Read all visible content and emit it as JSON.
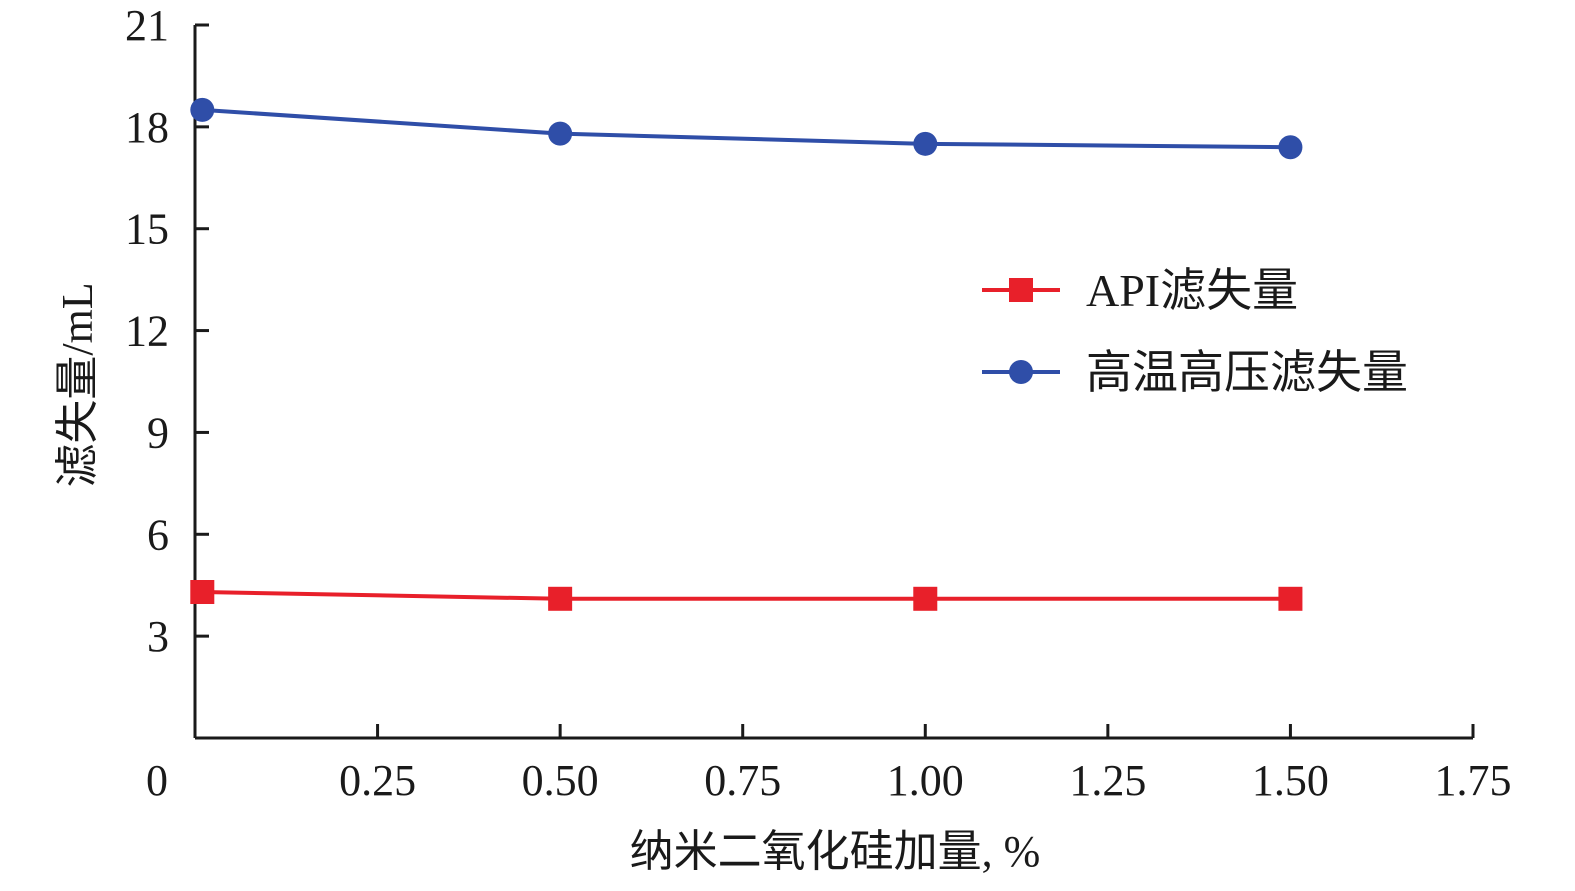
{
  "chart_data": {
    "type": "line",
    "title": "",
    "xlabel": "纳米二氧化硅加量, %",
    "ylabel": "滤失量/mL",
    "xlim": [
      0,
      1.75
    ],
    "ylim": [
      0,
      21
    ],
    "x_ticks": [
      "0",
      "0.25",
      "0.50",
      "0.75",
      "1.00",
      "1.25",
      "1.50",
      "1.75"
    ],
    "x_tick_values": [
      0,
      0.25,
      0.5,
      0.75,
      1.0,
      1.25,
      1.5,
      1.75
    ],
    "y_ticks": [
      "3",
      "6",
      "9",
      "12",
      "15",
      "18",
      "21"
    ],
    "y_tick_values": [
      3,
      6,
      9,
      12,
      15,
      18,
      21
    ],
    "grid": false,
    "legend_position": "right",
    "series": [
      {
        "name": "API滤失量",
        "color": "#e8202a",
        "marker": "square",
        "x": [
          0.01,
          0.5,
          1.0,
          1.5
        ],
        "y": [
          4.3,
          4.1,
          4.1,
          4.1
        ]
      },
      {
        "name": "高温高压滤失量",
        "color": "#2f4ea8",
        "marker": "circle",
        "x": [
          0.01,
          0.5,
          1.0,
          1.5
        ],
        "y": [
          18.5,
          17.8,
          17.5,
          17.4
        ]
      }
    ]
  }
}
